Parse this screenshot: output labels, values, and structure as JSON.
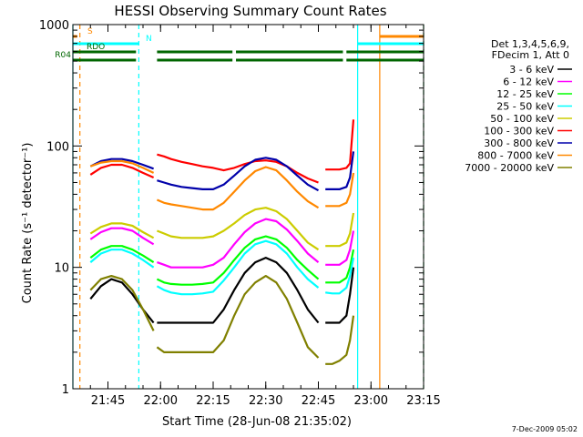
{
  "chart_data": {
    "type": "line",
    "title": "HESSI Observing Summary Count Rates",
    "xlabel": "Start Time (28-Jun-08 21:35:02)",
    "ylabel": "Count Rate (s⁻¹ detector⁻¹)",
    "y_scale": "log",
    "ylim": [
      1,
      1000
    ],
    "xlim_minutes": [
      0,
      100.0
    ],
    "x_ticks": [
      {
        "label": "21:45",
        "minute": 10.0
      },
      {
        "label": "22:00",
        "minute": 25.0
      },
      {
        "label": "22:15",
        "minute": 40.0
      },
      {
        "label": "22:30",
        "minute": 55.0
      },
      {
        "label": "22:45",
        "minute": 70.0
      },
      {
        "label": "23:00",
        "minute": 85.0
      },
      {
        "label": "23:15",
        "minute": 100.0
      }
    ],
    "y_ticks": [
      {
        "label": "1",
        "value": 1
      },
      {
        "label": "10",
        "value": 10
      },
      {
        "label": "100",
        "value": 100
      },
      {
        "label": "1000",
        "value": 1000
      }
    ],
    "legend_header": [
      "Det 1,3,4,5,6,9,",
      "FDecim 1, Att 0"
    ],
    "x": [
      0,
      2,
      5,
      8,
      11,
      14,
      17,
      20,
      23,
      23.5,
      24,
      26,
      28,
      31,
      34,
      37,
      40,
      43,
      46,
      49,
      52,
      55,
      58,
      61,
      64,
      67,
      70,
      71,
      72,
      74,
      76,
      78,
      79,
      80,
      81,
      82
    ],
    "series": [
      {
        "name": "3 - 6 keV",
        "color": "#000000",
        "values": [
          null,
          null,
          5.5,
          7.0,
          8.0,
          7.5,
          6.0,
          4.5,
          3.5,
          null,
          3.5,
          3.5,
          3.5,
          3.5,
          3.5,
          3.5,
          3.5,
          4.5,
          6.5,
          9.0,
          11.0,
          12.0,
          11.0,
          9.0,
          6.5,
          4.5,
          3.5,
          null,
          3.5,
          3.5,
          3.5,
          4.0,
          6.0,
          10.0,
          null,
          null
        ]
      },
      {
        "name": "6 - 12 keV",
        "color": "#ff00ff",
        "values": [
          null,
          null,
          17,
          19.5,
          21,
          21,
          20,
          17.5,
          15.5,
          null,
          11,
          10.5,
          10,
          10,
          10,
          10,
          10.5,
          12,
          15.5,
          19.5,
          23,
          25,
          24,
          20.5,
          16.5,
          13,
          11,
          null,
          10.5,
          10.5,
          10.5,
          11.5,
          14,
          20,
          null,
          null
        ]
      },
      {
        "name": "12 - 25 keV",
        "color": "#00ff00",
        "values": [
          null,
          null,
          12,
          14,
          15,
          15,
          14,
          12.5,
          11,
          null,
          8.0,
          7.5,
          7.3,
          7.2,
          7.2,
          7.3,
          7.5,
          9.0,
          11.5,
          14.5,
          17,
          18,
          17,
          14.5,
          11.5,
          9.5,
          8.0,
          null,
          7.5,
          7.5,
          7.5,
          8.2,
          10,
          14,
          null,
          null
        ]
      },
      {
        "name": "25 - 50 keV",
        "color": "#00ffff",
        "values": [
          null,
          null,
          11,
          13,
          14,
          14,
          13,
          11.5,
          10,
          null,
          7.0,
          6.5,
          6.2,
          6.0,
          6.0,
          6.1,
          6.3,
          7.8,
          10,
          13,
          15.5,
          16.5,
          15.5,
          13,
          10,
          8.0,
          6.8,
          null,
          6.2,
          6.1,
          6.1,
          6.8,
          8.5,
          12,
          null,
          null
        ]
      },
      {
        "name": "50 - 100 keV",
        "color": "#cccc00",
        "values": [
          null,
          null,
          19,
          21.5,
          23,
          23,
          22,
          19.5,
          17.5,
          null,
          20,
          19,
          18,
          17.5,
          17.5,
          17.5,
          18,
          20,
          23,
          27,
          30,
          31,
          29,
          25,
          20,
          16,
          14,
          null,
          15,
          15,
          15,
          16,
          19,
          28,
          null,
          null
        ]
      },
      {
        "name": "100 - 300 keV",
        "color": "#ff0000",
        "values": [
          null,
          null,
          58,
          66,
          70,
          70,
          66,
          60,
          55,
          null,
          85,
          82,
          78,
          74,
          71,
          68,
          66,
          63,
          66,
          71,
          75,
          76,
          74,
          68,
          60,
          54,
          50,
          null,
          64,
          64,
          64,
          66,
          72,
          165,
          null,
          null
        ]
      },
      {
        "name": "300 - 800 keV",
        "color": "#0000aa",
        "values": [
          null,
          null,
          68,
          75,
          78,
          78,
          75,
          70,
          65,
          null,
          52,
          50,
          48,
          46,
          45,
          44,
          44,
          48,
          57,
          68,
          77,
          80,
          77,
          68,
          57,
          48,
          43,
          null,
          44,
          44,
          44,
          46,
          55,
          90,
          null,
          null
        ]
      },
      {
        "name": "800 - 7000 keV",
        "color": "#ff8800",
        "values": [
          null,
          null,
          68,
          73,
          75,
          75,
          72,
          66,
          60,
          null,
          36,
          34,
          33,
          32,
          31,
          30,
          30,
          34,
          42,
          52,
          62,
          67,
          63,
          52,
          42,
          35,
          31,
          null,
          32,
          32,
          32,
          34,
          40,
          60,
          null,
          null
        ]
      },
      {
        "name": "7000 - 20000 keV",
        "color": "#808000",
        "values": [
          null,
          null,
          6.5,
          8.0,
          8.5,
          8.0,
          6.5,
          4.5,
          3.0,
          null,
          2.2,
          2.0,
          2.0,
          2.0,
          2.0,
          2.0,
          2.0,
          2.5,
          4.0,
          6.0,
          7.5,
          8.5,
          7.5,
          5.5,
          3.5,
          2.2,
          1.8,
          null,
          1.6,
          1.6,
          1.7,
          1.9,
          2.5,
          4.0,
          null,
          null
        ]
      }
    ],
    "flags": [
      {
        "name": "S",
        "color": "#ff8800",
        "segments": [
          [
            0,
            1.2
          ],
          [
            87.5,
            100
          ]
        ]
      },
      {
        "name": "N",
        "color": "#00ffff",
        "segments": [
          [
            0,
            18.8
          ],
          [
            81.2,
            100
          ]
        ]
      },
      {
        "name": "RDO",
        "color": "#006600",
        "segments": [
          [
            0,
            18.0
          ],
          [
            24.0,
            45.5
          ],
          [
            46.5,
            77.0
          ],
          [
            78.0,
            100
          ]
        ]
      },
      {
        "name": "R04",
        "color": "#006600",
        "segments": [
          [
            0,
            18.0
          ],
          [
            24.0,
            45.5
          ],
          [
            46.5,
            77.0
          ],
          [
            78.0,
            100
          ]
        ]
      }
    ],
    "vertical_lines": [
      {
        "minute": 0.0,
        "color": "#00ffff",
        "style": "solid"
      },
      {
        "minute": 2.0,
        "color": "#ff8800",
        "style": "dashed"
      },
      {
        "minute": 18.8,
        "color": "#00ffff",
        "style": "dashed"
      },
      {
        "minute": 81.2,
        "color": "#00ffff",
        "style": "solid"
      },
      {
        "minute": 87.5,
        "color": "#ff8800",
        "style": "solid"
      },
      {
        "minute": 100.0,
        "color": "#ff8800",
        "style": "dashed"
      },
      {
        "minute": 100.0,
        "color": "#00ffff",
        "style": "dashed"
      }
    ]
  },
  "footer": {
    "timestamp": "7-Dec-2009 05:02"
  }
}
